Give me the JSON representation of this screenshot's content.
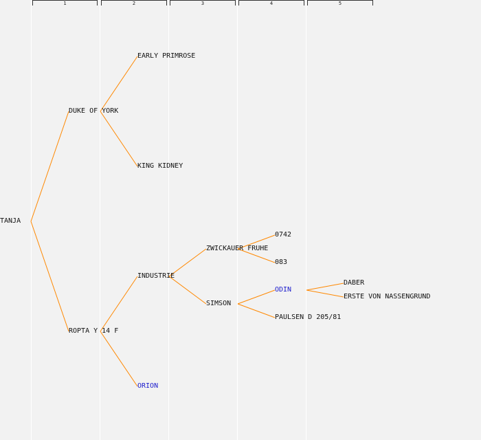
{
  "generations": [
    {
      "label": "1"
    },
    {
      "label": "2"
    },
    {
      "label": "3"
    },
    {
      "label": "4"
    },
    {
      "label": "5"
    }
  ],
  "nodes": {
    "tanja": {
      "label": "TANJA"
    },
    "duke_of_york": {
      "label": "DUKE OF YORK"
    },
    "ropta": {
      "label": "ROPTA Y 14 F"
    },
    "early_primrose": {
      "label": "EARLY PRIMROSE"
    },
    "king_kidney": {
      "label": "KING KIDNEY"
    },
    "industrie": {
      "label": "INDUSTRIE"
    },
    "orion": {
      "label": "ORION"
    },
    "zwickauer_fruhe": {
      "label": "ZWICKAUER FRUHE"
    },
    "simson": {
      "label": "SIMSON"
    },
    "n0742": {
      "label": "0742"
    },
    "n083": {
      "label": "083"
    },
    "odin": {
      "label": "ODIN"
    },
    "paulsen": {
      "label": "PAULSEN D 205/81"
    },
    "daber": {
      "label": "DABER"
    },
    "erste": {
      "label": "ERSTE VON NASSENGRUND"
    }
  },
  "colors": {
    "link": "#ff8800",
    "highlight_text": "#1a1acc",
    "background": "#f2f2f2",
    "column_line": "#ffffff"
  }
}
